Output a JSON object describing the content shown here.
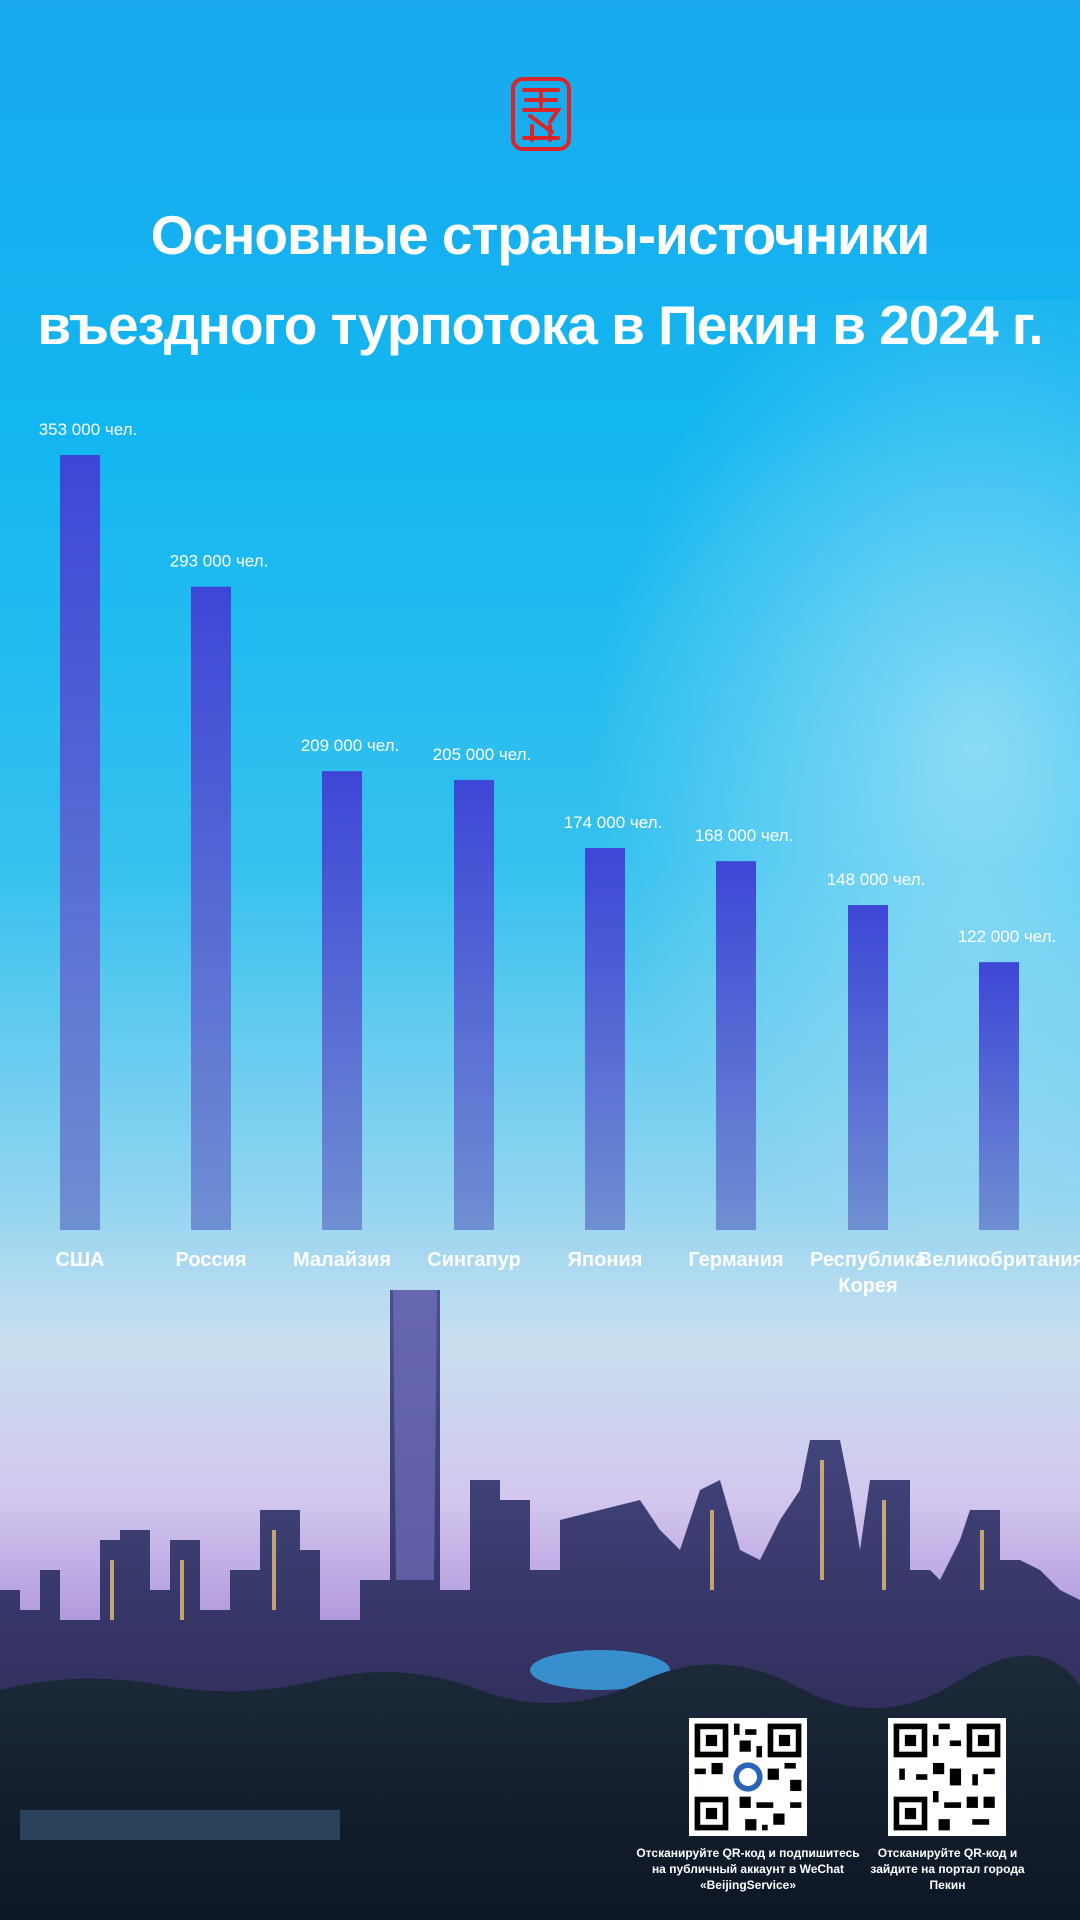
{
  "title_lines": [
    "Основные страны-источники",
    "въездного турпотока в Пекин в 2024 г."
  ],
  "chart_data": {
    "type": "bar",
    "title": "Основные страны-источники въездного турпотока в Пекин в 2024 г.",
    "categories": [
      "США",
      "Россия",
      "Малайзия",
      "Сингапур",
      "Япония",
      "Германия",
      "Республика Корея",
      "Великобритания"
    ],
    "category_lines": [
      [
        "США"
      ],
      [
        "Россия"
      ],
      [
        "Малайзия"
      ],
      [
        "Сингапур"
      ],
      [
        "Япония"
      ],
      [
        "Германия"
      ],
      [
        "Республика",
        "Корея"
      ],
      [
        "Великобритания"
      ]
    ],
    "values": [
      353000,
      293000,
      209000,
      205000,
      174000,
      168000,
      148000,
      122000
    ],
    "value_labels": [
      "353 000 чел.",
      "293 000 чел.",
      "209 000 чел.",
      "205 000 чел.",
      "174 000 чел.",
      "168 000 чел.",
      "148 000 чел.",
      "122 000 чел."
    ],
    "ylim": [
      0,
      353000
    ],
    "grid": false,
    "legend": "none",
    "colors": {
      "bar_top": "#3e46d6",
      "bar_bottom": "#6f8fd2"
    }
  },
  "qr_codes": [
    {
      "caption_lines": [
        "Отсканируйте QR-код и подпишитесь",
        "на публичный аккаунт в WeChat",
        "«BeijingService»"
      ],
      "icon": "qr-code-icon"
    },
    {
      "caption_lines": [
        "Отсканируйте QR-код и",
        "зайдите на портал города",
        "Пекин"
      ],
      "icon": "qr-code-icon"
    }
  ]
}
